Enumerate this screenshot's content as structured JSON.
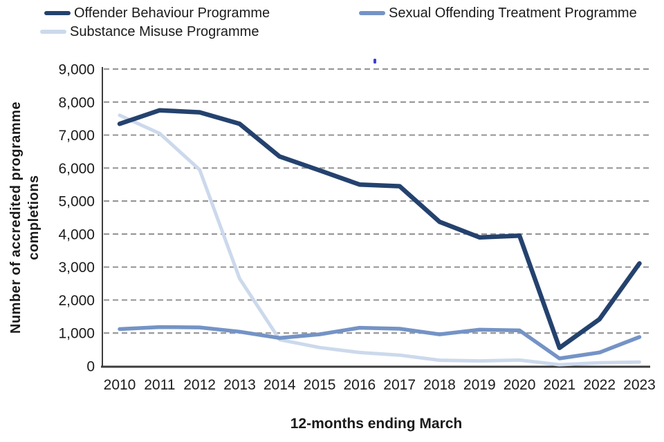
{
  "legend": {
    "items": [
      {
        "label": "Offender Behaviour Programme",
        "color": "#24426e"
      },
      {
        "label": "Sexual Offending Treatment Programme",
        "color": "#7493c6"
      },
      {
        "label": "Substance Misuse Programme",
        "color": "#ccd9ec"
      }
    ]
  },
  "chart_data": {
    "type": "line",
    "title": "",
    "x_categories": [
      "2010",
      "2011",
      "2012",
      "2013",
      "2014",
      "2015",
      "2016",
      "2017",
      "2018",
      "2019",
      "2020",
      "2021",
      "2022",
      "2023"
    ],
    "series": [
      {
        "name": "Offender Behaviour Programme",
        "color": "#24426e",
        "values": [
          7340,
          7750,
          7690,
          7340,
          6350,
          5930,
          5500,
          5450,
          4370,
          3900,
          3950,
          550,
          1420,
          3110
        ]
      },
      {
        "name": "Sexual Offending Treatment Programme",
        "color": "#7493c6",
        "values": [
          1120,
          1180,
          1170,
          1040,
          850,
          960,
          1160,
          1130,
          960,
          1100,
          1080,
          230,
          410,
          880
        ]
      },
      {
        "name": "Substance Misuse Programme",
        "color": "#ccd9ec",
        "values": [
          7600,
          7050,
          5950,
          2650,
          800,
          560,
          410,
          330,
          175,
          155,
          180,
          40,
          100,
          120
        ]
      }
    ],
    "xlabel": "12-months ending March",
    "ylabel": "Number of accredited programme completions",
    "ylabel_lines": [
      "Number of accredited programme",
      "completions"
    ],
    "ylim": [
      0,
      9000
    ],
    "ytick_step": 1000,
    "grid": "horizontal-dashed",
    "legend_position": "top"
  },
  "axis_titles": {
    "y_line1": "Number of accredited programme",
    "y_line2": "completions",
    "x": "12-months ending March"
  },
  "colors": {
    "axis": "#3c3c3c",
    "grid": "#989898",
    "tick_text": "#1b1b1b",
    "artifact_dot": "#3d3fd2"
  }
}
